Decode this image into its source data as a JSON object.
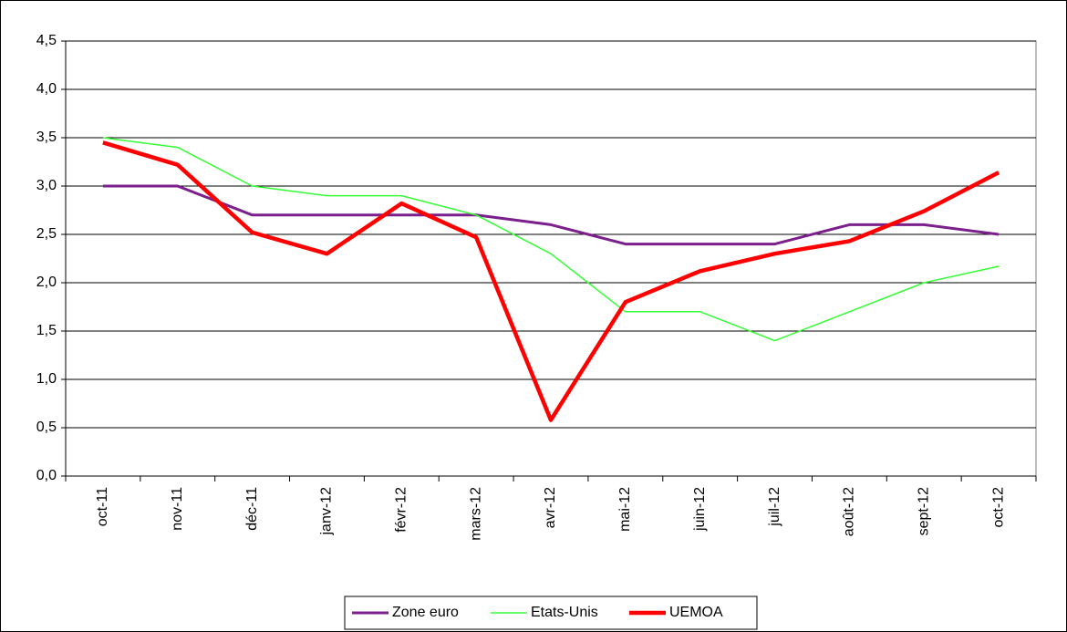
{
  "chart_data": {
    "type": "line",
    "categories": [
      "oct-11",
      "nov-11",
      "déc-11",
      "janv-12",
      "févr-12",
      "mars-12",
      "avr-12",
      "mai-12",
      "juin-12",
      "juil-12",
      "août-12",
      "sept-12",
      "oct-12"
    ],
    "series": [
      {
        "name": "Zone euro",
        "color": "#7b1f8c",
        "width": 3,
        "values": [
          3.0,
          3.0,
          2.7,
          2.7,
          2.7,
          2.7,
          2.6,
          2.4,
          2.4,
          2.4,
          2.6,
          2.6,
          2.5
        ]
      },
      {
        "name": "Etats-Unis",
        "color": "#33ff33",
        "width": 1.5,
        "values": [
          3.5,
          3.4,
          3.0,
          2.9,
          2.9,
          2.7,
          2.3,
          1.7,
          1.7,
          1.4,
          1.7,
          2.0,
          2.17
        ]
      },
      {
        "name": "UEMOA",
        "color": "#ff0000",
        "width": 4.5,
        "values": [
          3.45,
          3.22,
          2.52,
          2.3,
          2.82,
          2.47,
          0.58,
          1.8,
          2.12,
          2.3,
          2.43,
          2.74,
          3.14
        ]
      }
    ],
    "ylim": [
      0,
      4.5
    ],
    "yticks": [
      {
        "value": 0,
        "label": "0,0"
      },
      {
        "value": 0.5,
        "label": "0,5"
      },
      {
        "value": 1,
        "label": "1,0"
      },
      {
        "value": 1.5,
        "label": "1,5"
      },
      {
        "value": 2,
        "label": "2,0"
      },
      {
        "value": 2.5,
        "label": "2,5"
      },
      {
        "value": 3,
        "label": "3,0"
      },
      {
        "value": 3.5,
        "label": "3,5"
      },
      {
        "value": 4,
        "label": "4,0"
      },
      {
        "value": 4.5,
        "label": "4,5"
      }
    ],
    "grid": true,
    "legend": "bottom"
  }
}
